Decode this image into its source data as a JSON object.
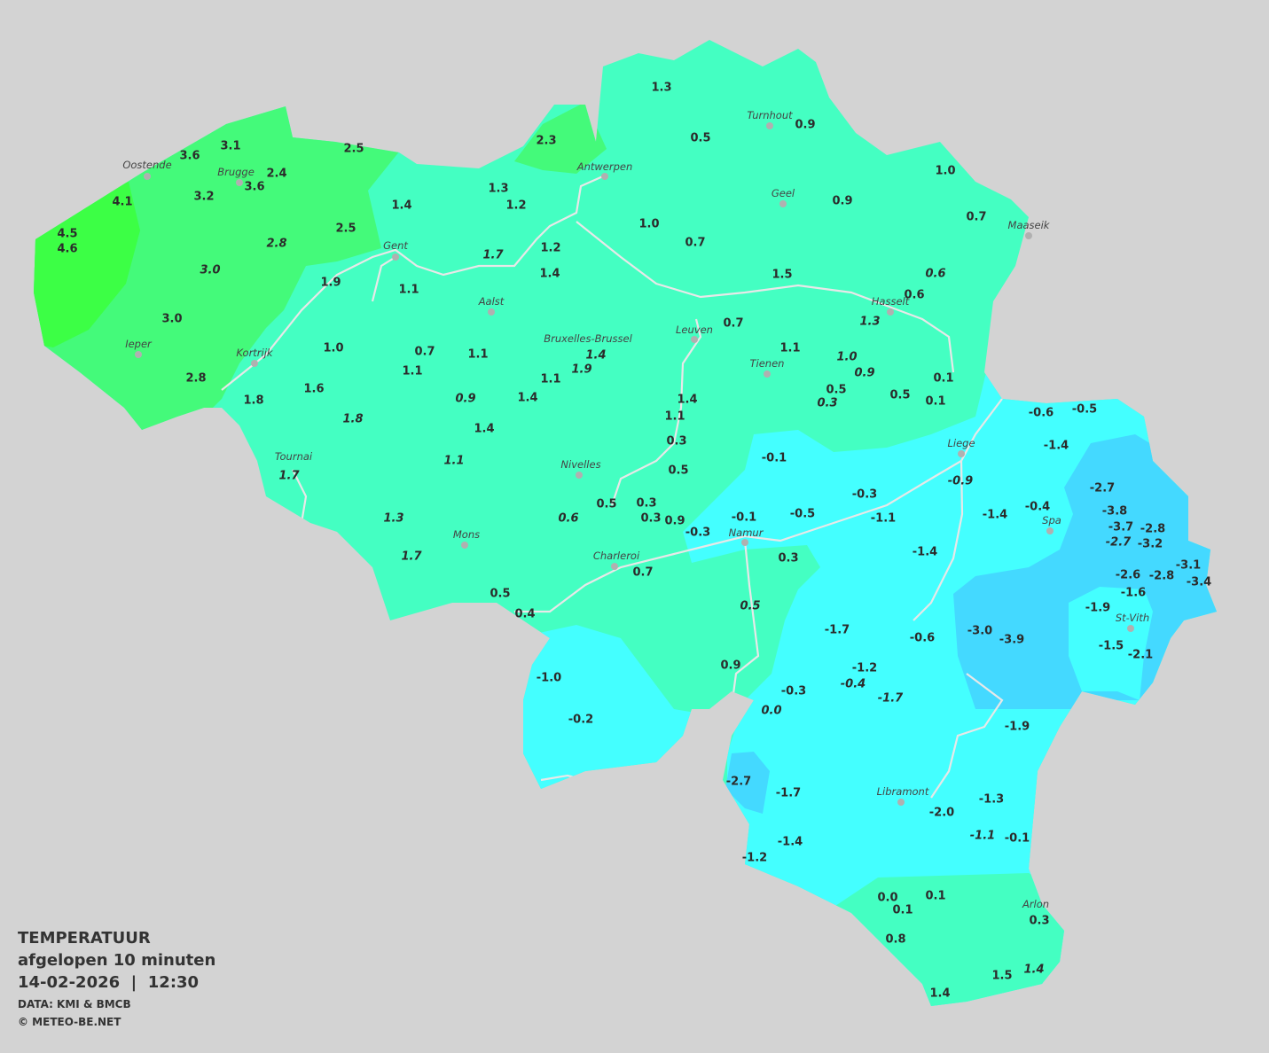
{
  "legend": {
    "title": "TEMPERATUUR",
    "subtitle": "afgelopen 10 minuten",
    "datetime": "14-02-2026  |  12:30",
    "source": "DATA: KMI & BMCB",
    "copyright": "© METEO-BE.NET"
  },
  "colors": {
    "background": "#d3d3d3",
    "zone_bright_green": "#3cff45",
    "zone_green": "#44fa7a",
    "zone_mint": "#44ffc2",
    "zone_cyan": "#44ffff",
    "zone_blue": "#44d9ff",
    "rivers": "#e8e8e8",
    "city_dot": "#b0b0b0"
  },
  "cities": [
    "Oostende",
    "Brugge",
    "Antwerpen",
    "Turnhout",
    "Geel",
    "Maaseik",
    "Gent",
    "Aalst",
    "Hasselt",
    "Leuven",
    "Bruxelles-Brussel",
    "Ieper",
    "Kortrijk",
    "Tienen",
    "Liege",
    "Tournai",
    "Nivelles",
    "Spa",
    "Namur",
    "Mons",
    "Charleroi",
    "St-Vith",
    "Libramont",
    "Arlon"
  ],
  "stations": [
    {
      "value": "3.1"
    },
    {
      "value": "3.6"
    },
    {
      "value": "2.5"
    },
    {
      "value": "2.3"
    },
    {
      "value": "1.3"
    },
    {
      "value": "0.5"
    },
    {
      "value": "0.9"
    },
    {
      "value": "2.4"
    },
    {
      "value": "3.6"
    },
    {
      "value": "4.1"
    },
    {
      "value": "3.2"
    },
    {
      "value": "1.3"
    },
    {
      "value": "1.2"
    },
    {
      "value": "1.4"
    },
    {
      "value": "1.0"
    },
    {
      "value": "0.9"
    },
    {
      "value": "1.0"
    },
    {
      "value": "0.7"
    },
    {
      "value": "0.7"
    },
    {
      "value": "4.5"
    },
    {
      "value": "4.6"
    },
    {
      "value": "2.5"
    },
    {
      "value": "2.8",
      "italic": true
    },
    {
      "value": "1.7",
      "italic": true
    },
    {
      "value": "1.2"
    },
    {
      "value": "1.4"
    },
    {
      "value": "3.0",
      "italic": true
    },
    {
      "value": "1.9"
    },
    {
      "value": "1.1"
    },
    {
      "value": "1.5"
    },
    {
      "value": "0.6",
      "italic": true
    },
    {
      "value": "0.6"
    },
    {
      "value": "1.3",
      "italic": true
    },
    {
      "value": "0.7"
    },
    {
      "value": "3.0"
    },
    {
      "value": "1.0"
    },
    {
      "value": "0.7"
    },
    {
      "value": "1.1"
    },
    {
      "value": "1.4",
      "italic": true
    },
    {
      "value": "1.9",
      "italic": true
    },
    {
      "value": "1.1"
    },
    {
      "value": "1.0",
      "italic": true
    },
    {
      "value": "0.9",
      "italic": true
    },
    {
      "value": "1.1"
    },
    {
      "value": "1.1"
    },
    {
      "value": "0.1"
    },
    {
      "value": "2.8"
    },
    {
      "value": "1.6"
    },
    {
      "value": "1.8"
    },
    {
      "value": "0.9",
      "italic": true
    },
    {
      "value": "1.4"
    },
    {
      "value": "1.4"
    },
    {
      "value": "0.5"
    },
    {
      "value": "0.3",
      "italic": true
    },
    {
      "value": "0.5"
    },
    {
      "value": "0.1"
    },
    {
      "value": "1.8",
      "italic": true
    },
    {
      "value": "1.1"
    },
    {
      "value": "1.4"
    },
    {
      "value": "0.3"
    },
    {
      "value": "-0.6"
    },
    {
      "value": "-0.5"
    },
    {
      "value": "-1.4"
    },
    {
      "value": "1.1",
      "italic": true
    },
    {
      "value": "0.5"
    },
    {
      "value": "-0.1"
    },
    {
      "value": "1.7",
      "italic": true
    },
    {
      "value": "-0.9",
      "italic": true
    },
    {
      "value": "-2.7"
    },
    {
      "value": "-0.3"
    },
    {
      "value": "0.5"
    },
    {
      "value": "0.3"
    },
    {
      "value": "1.3",
      "italic": true
    },
    {
      "value": "0.6",
      "italic": true
    },
    {
      "value": "0.3"
    },
    {
      "value": "0.9"
    },
    {
      "value": "-0.1"
    },
    {
      "value": "-0.5"
    },
    {
      "value": "-1.1"
    },
    {
      "value": "-1.4"
    },
    {
      "value": "-0.4"
    },
    {
      "value": "-3.8"
    },
    {
      "value": "-3.7"
    },
    {
      "value": "-2.8"
    },
    {
      "value": "-0.3"
    },
    {
      "value": "-2.7",
      "italic": true
    },
    {
      "value": "-3.2"
    },
    {
      "value": "1.7",
      "italic": true
    },
    {
      "value": "-1.4"
    },
    {
      "value": "0.3"
    },
    {
      "value": "-3.1"
    },
    {
      "value": "-2.8"
    },
    {
      "value": "-3.4"
    },
    {
      "value": "-2.6"
    },
    {
      "value": "0.7"
    },
    {
      "value": "0.5"
    },
    {
      "value": "-1.6"
    },
    {
      "value": "0.5",
      "italic": true
    },
    {
      "value": "0.4"
    },
    {
      "value": "-1.9"
    },
    {
      "value": "-3.0"
    },
    {
      "value": "-3.9"
    },
    {
      "value": "-1.7"
    },
    {
      "value": "-0.6"
    },
    {
      "value": "-1.5"
    },
    {
      "value": "-2.1"
    },
    {
      "value": "0.9"
    },
    {
      "value": "-1.2"
    },
    {
      "value": "-0.4",
      "italic": true
    },
    {
      "value": "-1.0"
    },
    {
      "value": "-0.3"
    },
    {
      "value": "-1.7",
      "italic": true
    },
    {
      "value": "0.0",
      "italic": true
    },
    {
      "value": "-0.2"
    },
    {
      "value": "-1.9"
    },
    {
      "value": "-2.7"
    },
    {
      "value": "-1.7"
    },
    {
      "value": "-1.3"
    },
    {
      "value": "-2.0"
    },
    {
      "value": "-1.1",
      "italic": true
    },
    {
      "value": "-0.1"
    },
    {
      "value": "-1.4"
    },
    {
      "value": "-1.2"
    },
    {
      "value": "0.0"
    },
    {
      "value": "0.1"
    },
    {
      "value": "0.1"
    },
    {
      "value": "0.3"
    },
    {
      "value": "0.8"
    },
    {
      "value": "1.5"
    },
    {
      "value": "1.4",
      "italic": true
    },
    {
      "value": "1.4"
    }
  ]
}
